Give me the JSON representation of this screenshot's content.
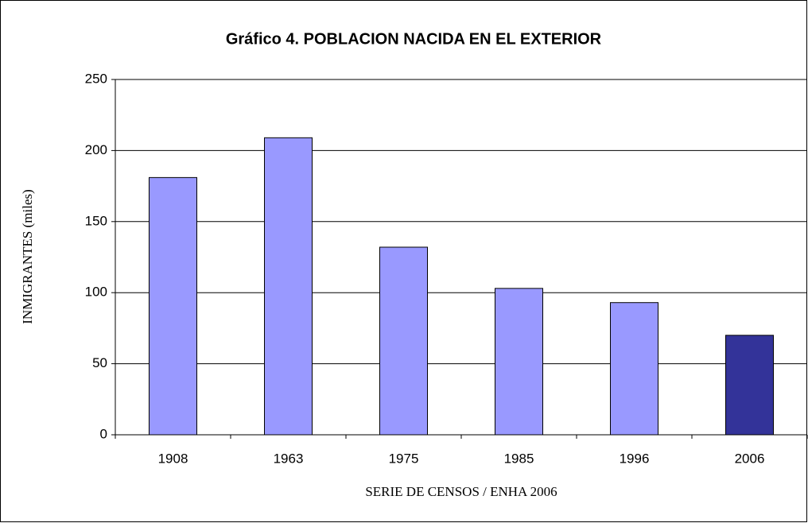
{
  "chart_data": {
    "type": "bar",
    "title": "Gráfico 4. POBLACION NACIDA EN EL EXTERIOR",
    "x_label": "SERIE DE CENSOS / ENHA 2006",
    "y_label": "INMIGRANTES (miles)",
    "categories": [
      "1908",
      "1963",
      "1975",
      "1985",
      "1996",
      "2006"
    ],
    "values": [
      181,
      209,
      132,
      103,
      93,
      70
    ],
    "colors": [
      "#9999ff",
      "#9999ff",
      "#9999ff",
      "#9999ff",
      "#9999ff",
      "#333399"
    ],
    "ylim": [
      0,
      250
    ],
    "yticks": [
      0,
      50,
      100,
      150,
      200,
      250
    ],
    "grid": true
  }
}
